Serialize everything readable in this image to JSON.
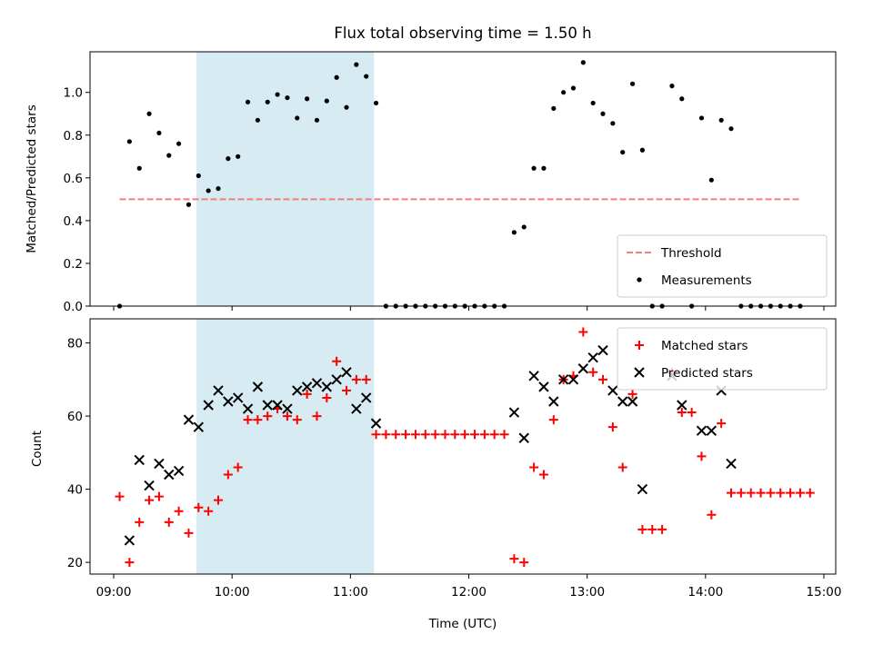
{
  "chart_data": [
    {
      "type": "scatter",
      "title": "Flux total observing time = 1.50 h",
      "xlabel": "",
      "ylabel": "Matched/Predicted stars",
      "xlim": [
        "08:48",
        "15:06"
      ],
      "ylim": [
        0,
        1.19
      ],
      "yticks": [
        0.0,
        0.2,
        0.4,
        0.6,
        0.8,
        1.0
      ],
      "ytick_labels": [
        "0.0",
        "0.2",
        "0.4",
        "0.6",
        "0.8",
        "1.0"
      ],
      "highlight_span": {
        "x0": "09:42",
        "x1": "11:12",
        "color": "#add8e6"
      },
      "threshold": {
        "name": "Threshold",
        "y": 0.5,
        "x0": "09:03",
        "x1": "14:48",
        "color": "#f08080",
        "style": "dashed"
      },
      "legend_position": "bottom-right",
      "legend": [
        {
          "label": "Threshold",
          "marker": "dashed-line",
          "color": "#f08080"
        },
        {
          "label": "Measurements",
          "marker": "dot",
          "color": "#000000"
        }
      ],
      "series": [
        {
          "name": "Measurements",
          "color": "#000000",
          "points": [
            [
              "09:03",
              0.0
            ],
            [
              "09:08",
              0.77
            ],
            [
              "09:13",
              0.645
            ],
            [
              "09:18",
              0.9
            ],
            [
              "09:23",
              0.81
            ],
            [
              "09:28",
              0.705
            ],
            [
              "09:33",
              0.76
            ],
            [
              "09:38",
              0.475
            ],
            [
              "09:43",
              0.61
            ],
            [
              "09:48",
              0.54
            ],
            [
              "09:53",
              0.55
            ],
            [
              "09:58",
              0.69
            ],
            [
              "10:03",
              0.7
            ],
            [
              "10:08",
              0.955
            ],
            [
              "10:13",
              0.87
            ],
            [
              "10:18",
              0.955
            ],
            [
              "10:23",
              0.99
            ],
            [
              "10:28",
              0.975
            ],
            [
              "10:33",
              0.88
            ],
            [
              "10:38",
              0.97
            ],
            [
              "10:43",
              0.87
            ],
            [
              "10:48",
              0.96
            ],
            [
              "10:53",
              1.07
            ],
            [
              "10:58",
              0.93
            ],
            [
              "11:03",
              1.13
            ],
            [
              "11:08",
              1.075
            ],
            [
              "11:13",
              0.95
            ],
            [
              "11:18",
              0.0
            ],
            [
              "11:23",
              0.0
            ],
            [
              "11:28",
              0.0
            ],
            [
              "11:33",
              0.0
            ],
            [
              "11:38",
              0.0
            ],
            [
              "11:43",
              0.0
            ],
            [
              "11:48",
              0.0
            ],
            [
              "11:53",
              0.0
            ],
            [
              "11:58",
              0.0
            ],
            [
              "12:03",
              0.0
            ],
            [
              "12:08",
              0.0
            ],
            [
              "12:13",
              0.0
            ],
            [
              "12:18",
              0.0
            ],
            [
              "12:23",
              0.345
            ],
            [
              "12:28",
              0.37
            ],
            [
              "12:33",
              0.645
            ],
            [
              "12:38",
              0.645
            ],
            [
              "12:43",
              0.925
            ],
            [
              "12:48",
              1.0
            ],
            [
              "12:53",
              1.02
            ],
            [
              "12:58",
              1.14
            ],
            [
              "13:03",
              0.95
            ],
            [
              "13:08",
              0.9
            ],
            [
              "13:13",
              0.855
            ],
            [
              "13:18",
              0.72
            ],
            [
              "13:23",
              1.04
            ],
            [
              "13:28",
              0.73
            ],
            [
              "13:33",
              0.0
            ],
            [
              "13:38",
              0.0
            ],
            [
              "13:43",
              1.03
            ],
            [
              "13:48",
              0.97
            ],
            [
              "13:53",
              0.0
            ],
            [
              "13:58",
              0.88
            ],
            [
              "14:03",
              0.59
            ],
            [
              "14:08",
              0.87
            ],
            [
              "14:13",
              0.83
            ],
            [
              "14:18",
              0.0
            ],
            [
              "14:23",
              0.0
            ],
            [
              "14:28",
              0.0
            ],
            [
              "14:33",
              0.0
            ],
            [
              "14:38",
              0.0
            ],
            [
              "14:43",
              0.0
            ],
            [
              "14:48",
              0.0
            ]
          ]
        }
      ]
    },
    {
      "type": "scatter",
      "title": "",
      "xlabel": "Time (UTC)",
      "ylabel": "Count",
      "xlim": [
        "08:48",
        "15:06"
      ],
      "ylim": [
        16.8,
        86.6
      ],
      "yticks": [
        20,
        40,
        60,
        80
      ],
      "ytick_labels": [
        "20",
        "40",
        "60",
        "80"
      ],
      "xticks": [
        "09:00",
        "10:00",
        "11:00",
        "12:00",
        "13:00",
        "14:00",
        "15:00"
      ],
      "xtick_labels": [
        "09:00",
        "10:00",
        "11:00",
        "12:00",
        "13:00",
        "14:00",
        "15:00"
      ],
      "highlight_span": {
        "x0": "09:42",
        "x1": "11:12",
        "color": "#add8e6"
      },
      "legend_position": "top-right",
      "legend": [
        {
          "label": "Matched stars",
          "marker": "plus",
          "color": "#ff0000"
        },
        {
          "label": "Predicted stars",
          "marker": "x",
          "color": "#000000"
        }
      ],
      "series": [
        {
          "name": "Matched stars",
          "marker": "plus",
          "color": "#ff0000",
          "points": [
            [
              "09:03",
              38
            ],
            [
              "09:08",
              20
            ],
            [
              "09:13",
              31
            ],
            [
              "09:18",
              37
            ],
            [
              "09:23",
              38
            ],
            [
              "09:28",
              31
            ],
            [
              "09:33",
              34
            ],
            [
              "09:38",
              28
            ],
            [
              "09:43",
              35
            ],
            [
              "09:48",
              34
            ],
            [
              "09:53",
              37
            ],
            [
              "09:58",
              44
            ],
            [
              "10:03",
              46
            ],
            [
              "10:08",
              59
            ],
            [
              "10:13",
              59
            ],
            [
              "10:18",
              60
            ],
            [
              "10:23",
              62
            ],
            [
              "10:28",
              60
            ],
            [
              "10:33",
              59
            ],
            [
              "10:38",
              66
            ],
            [
              "10:43",
              60
            ],
            [
              "10:48",
              65
            ],
            [
              "10:53",
              75
            ],
            [
              "10:58",
              67
            ],
            [
              "11:03",
              70
            ],
            [
              "11:08",
              70
            ],
            [
              "11:13",
              55
            ],
            [
              "11:18",
              55
            ],
            [
              "11:23",
              55
            ],
            [
              "11:28",
              55
            ],
            [
              "11:33",
              55
            ],
            [
              "11:38",
              55
            ],
            [
              "11:43",
              55
            ],
            [
              "11:48",
              55
            ],
            [
              "11:53",
              55
            ],
            [
              "11:58",
              55
            ],
            [
              "12:03",
              55
            ],
            [
              "12:08",
              55
            ],
            [
              "12:13",
              55
            ],
            [
              "12:18",
              55
            ],
            [
              "12:23",
              21
            ],
            [
              "12:28",
              20
            ],
            [
              "12:33",
              46
            ],
            [
              "12:38",
              44
            ],
            [
              "12:43",
              59
            ],
            [
              "12:48",
              70
            ],
            [
              "12:53",
              71
            ],
            [
              "12:58",
              83
            ],
            [
              "13:03",
              72
            ],
            [
              "13:08",
              70
            ],
            [
              "13:13",
              57
            ],
            [
              "13:18",
              46
            ],
            [
              "13:23",
              66
            ],
            [
              "13:28",
              29
            ],
            [
              "13:33",
              29
            ],
            [
              "13:38",
              29
            ],
            [
              "13:43",
              72
            ],
            [
              "13:48",
              61
            ],
            [
              "13:53",
              61
            ],
            [
              "13:58",
              49
            ],
            [
              "14:03",
              33
            ],
            [
              "14:08",
              58
            ],
            [
              "14:13",
              39
            ],
            [
              "14:18",
              39
            ],
            [
              "14:23",
              39
            ],
            [
              "14:28",
              39
            ],
            [
              "14:33",
              39
            ],
            [
              "14:38",
              39
            ],
            [
              "14:43",
              39
            ],
            [
              "14:48",
              39
            ],
            [
              "14:53",
              39
            ]
          ]
        },
        {
          "name": "Predicted stars",
          "marker": "x",
          "color": "#000000",
          "points": [
            [
              "09:08",
              26
            ],
            [
              "09:13",
              48
            ],
            [
              "09:18",
              41
            ],
            [
              "09:23",
              47
            ],
            [
              "09:28",
              44
            ],
            [
              "09:33",
              45
            ],
            [
              "09:38",
              59
            ],
            [
              "09:43",
              57
            ],
            [
              "09:48",
              63
            ],
            [
              "09:53",
              67
            ],
            [
              "09:58",
              64
            ],
            [
              "10:03",
              65
            ],
            [
              "10:08",
              62
            ],
            [
              "10:13",
              68
            ],
            [
              "10:18",
              63
            ],
            [
              "10:23",
              63
            ],
            [
              "10:28",
              62
            ],
            [
              "10:33",
              67
            ],
            [
              "10:38",
              68
            ],
            [
              "10:43",
              69
            ],
            [
              "10:48",
              68
            ],
            [
              "10:53",
              70
            ],
            [
              "10:58",
              72
            ],
            [
              "11:03",
              62
            ],
            [
              "11:08",
              65
            ],
            [
              "11:13",
              58
            ],
            [
              "12:23",
              61
            ],
            [
              "12:28",
              54
            ],
            [
              "12:33",
              71
            ],
            [
              "12:38",
              68
            ],
            [
              "12:43",
              64
            ],
            [
              "12:48",
              70
            ],
            [
              "12:53",
              70
            ],
            [
              "12:58",
              73
            ],
            [
              "13:03",
              76
            ],
            [
              "13:08",
              78
            ],
            [
              "13:13",
              67
            ],
            [
              "13:18",
              64
            ],
            [
              "13:23",
              64
            ],
            [
              "13:28",
              40
            ],
            [
              "13:43",
              71
            ],
            [
              "13:48",
              63
            ],
            [
              "13:58",
              56
            ],
            [
              "14:03",
              56
            ],
            [
              "14:08",
              67
            ],
            [
              "14:13",
              47
            ]
          ]
        }
      ]
    }
  ]
}
